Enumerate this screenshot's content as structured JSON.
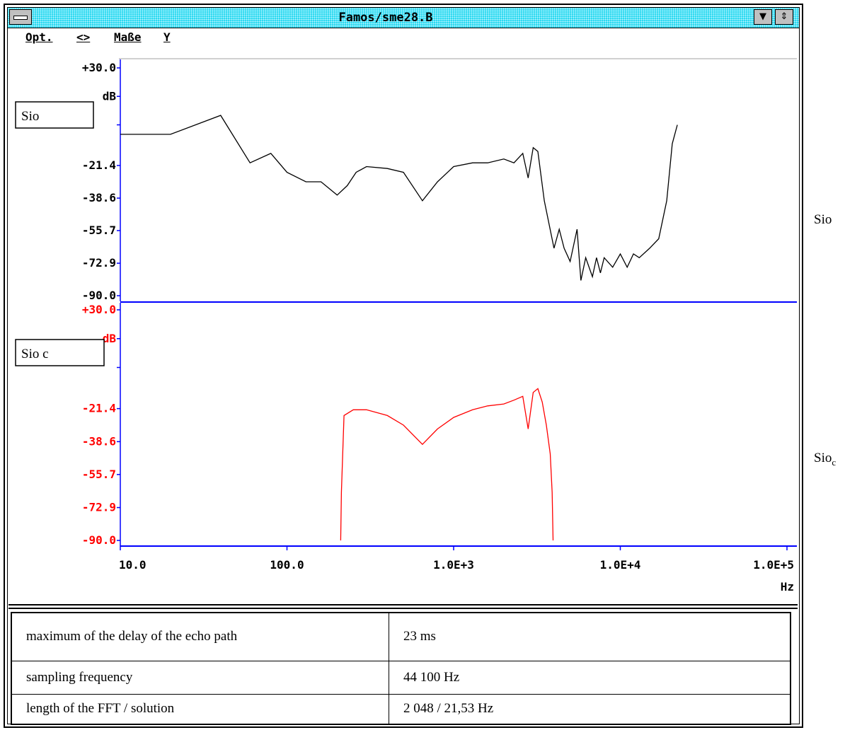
{
  "window": {
    "title": "Famos/sme28.B",
    "menu": [
      "Opt.",
      "<>",
      "Maße",
      "Y"
    ]
  },
  "colors": {
    "series_top": "#000000",
    "series_bottom": "#ff0000",
    "axis": "#0000ff",
    "titlebar": "#2bd9f0"
  },
  "chart_data": [
    {
      "type": "line",
      "label_box": "Sio",
      "xscale": "log",
      "xlim": [
        10,
        100000
      ],
      "ylabel": "dB",
      "ylim": [
        -90.0,
        30.0
      ],
      "yticks": [
        "+30.0",
        "dB",
        "-21.4",
        "-38.6",
        "-55.7",
        "-72.9",
        "-90.0"
      ],
      "series": [
        {
          "color": "#000000",
          "x": [
            10,
            20,
            40,
            60,
            80,
            100,
            130,
            160,
            200,
            230,
            260,
            300,
            400,
            500,
            650,
            800,
            1000,
            1300,
            1600,
            2000,
            2300,
            2600,
            2800,
            3000,
            3200,
            3500,
            4000,
            4300,
            4600,
            5000,
            5500,
            5800,
            6200,
            6800,
            7200,
            7600,
            8000,
            9000,
            10000,
            11000,
            12000,
            13000,
            15000,
            17000,
            19000,
            20500,
            22000
          ],
          "y": [
            -5,
            -5,
            5,
            -20,
            -15,
            -25,
            -30,
            -30,
            -37,
            -32,
            -25,
            -22,
            -23,
            -25,
            -40,
            -30,
            -22,
            -20,
            -20,
            -18,
            -20,
            -15,
            -28,
            -12,
            -14,
            -40,
            -65,
            -55,
            -65,
            -72,
            -55,
            -82,
            -70,
            -80,
            -70,
            -78,
            -70,
            -75,
            -68,
            -75,
            -68,
            -70,
            -65,
            -60,
            -40,
            -10,
            0
          ]
        }
      ]
    },
    {
      "type": "line",
      "label_box": "Sio c",
      "xscale": "log",
      "xlim": [
        10,
        100000
      ],
      "ylabel": "dB",
      "ylim": [
        -90.0,
        30.0
      ],
      "yticks": [
        "+30.0",
        "dB",
        "-21.4",
        "-38.6",
        "-55.7",
        "-72.9",
        "-90.0"
      ],
      "xticks": [
        "10.0",
        "100.0",
        "1.0E+3",
        "1.0E+4",
        "1.0E+5"
      ],
      "xlabel": "Hz",
      "series": [
        {
          "color": "#ff0000",
          "x": [
            210,
            212,
            220,
            250,
            300,
            400,
            500,
            650,
            800,
            1000,
            1300,
            1600,
            2000,
            2300,
            2600,
            2800,
            3000,
            3200,
            3400,
            3600,
            3800,
            3900,
            3950
          ],
          "y": [
            -90,
            -65,
            -25,
            -22,
            -22,
            -25,
            -30,
            -40,
            -32,
            -26,
            -22,
            -20,
            -19,
            -17,
            -15,
            -32,
            -13,
            -11,
            -18,
            -30,
            -45,
            -65,
            -90
          ]
        }
      ]
    }
  ],
  "table": [
    [
      "maximum of the delay of the echo path",
      "23 ms"
    ],
    [
      "sampling frequency",
      "44 100 Hz"
    ],
    [
      "length of the FFT / solution",
      "2 048 / 21,53 Hz"
    ]
  ],
  "side_labels": [
    "Sio",
    "Sio",
    "c"
  ]
}
